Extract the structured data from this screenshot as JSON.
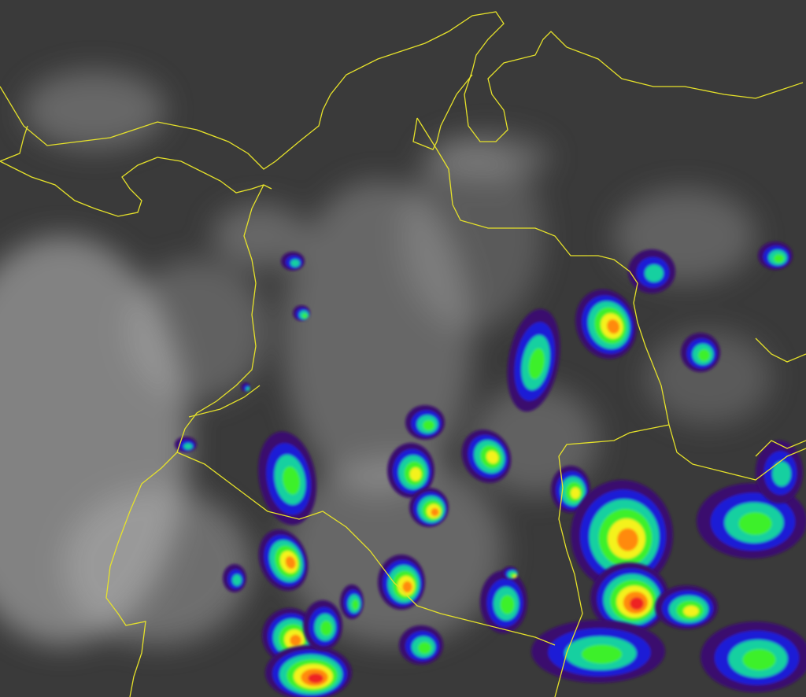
{
  "map": {
    "kind": "enhanced infrared satellite image",
    "colors": {
      "background": "#3a3a3a",
      "cloud_light": "#bdbdbd",
      "border": "#e6e22a",
      "enhancement_scale": [
        "#3a0a6e",
        "#1f1fd6",
        "#12d0a0",
        "#3cf02a",
        "#f4f21c",
        "#ff8a10",
        "#ee2020"
      ]
    }
  }
}
